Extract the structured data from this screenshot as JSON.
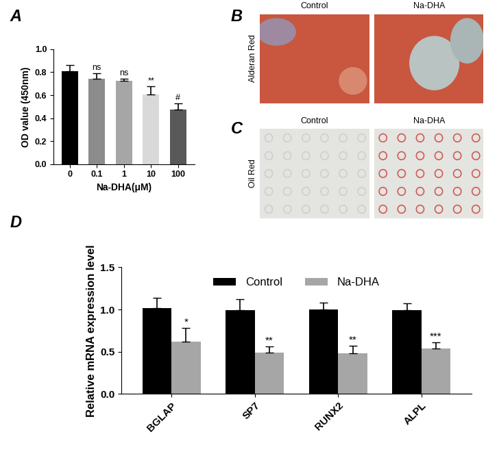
{
  "chart_data": [
    {
      "type": "bar",
      "title": "A",
      "categories": [
        "0",
        "0.1",
        "1",
        "10",
        "100"
      ],
      "values": [
        0.81,
        0.745,
        0.725,
        0.605,
        0.475
      ],
      "errors": [
        0.055,
        0.045,
        0.02,
        0.07,
        0.055
      ],
      "annotations": [
        null,
        "ns",
        "ns",
        "**",
        "#"
      ],
      "colors": [
        "#000000",
        "#8c8c8c",
        "#a6a6a6",
        "#d9d9d9",
        "#595959"
      ],
      "x_label": "Na-DHA(μM)",
      "y_label": "OD value (450nm)",
      "ylim": [
        0,
        1.0
      ],
      "yticks": [
        {
          "value": 0,
          "label": "0.0"
        },
        {
          "value": 0.2,
          "label": "0.2"
        },
        {
          "value": 0.4,
          "label": "0.4"
        },
        {
          "value": 0.6,
          "label": "0.6"
        },
        {
          "value": 0.8,
          "label": "0.8"
        },
        {
          "value": 1.0,
          "label": "1.0"
        }
      ]
    },
    {
      "type": "bar",
      "title": "D",
      "categories": [
        "BGLAP",
        "SP7",
        "RUNX2",
        "ALPL"
      ],
      "series": [
        {
          "name": "Control",
          "color": "#000000",
          "values": [
            1.02,
            0.99,
            1.0,
            0.99
          ],
          "errors": [
            0.12,
            0.13,
            0.08,
            0.08
          ],
          "annotations": [
            null,
            null,
            null,
            null
          ]
        },
        {
          "name": "Na-DHA",
          "color": "#a6a6a6",
          "values": [
            0.62,
            0.49,
            0.48,
            0.54
          ],
          "errors": [
            0.16,
            0.07,
            0.09,
            0.07
          ],
          "annotations": [
            "*",
            "**",
            "**",
            "***"
          ]
        }
      ],
      "y_label": "Relative mRNA expression level",
      "legend": "upper center",
      "ylim": [
        0,
        1.5
      ],
      "yticks": [
        {
          "value": 0,
          "label": "0.0"
        },
        {
          "value": 0.5,
          "label": "0.5"
        },
        {
          "value": 1.0,
          "label": "1.0"
        },
        {
          "value": 1.5,
          "label": "1.5"
        }
      ]
    }
  ],
  "image_panels": [
    {
      "title": "B",
      "row_label": "Alderan Red",
      "columns": [
        "Control",
        "Na-DHA"
      ]
    },
    {
      "title": "C",
      "row_label": "Oil Red",
      "columns": [
        "Control",
        "Na-DHA"
      ]
    }
  ]
}
